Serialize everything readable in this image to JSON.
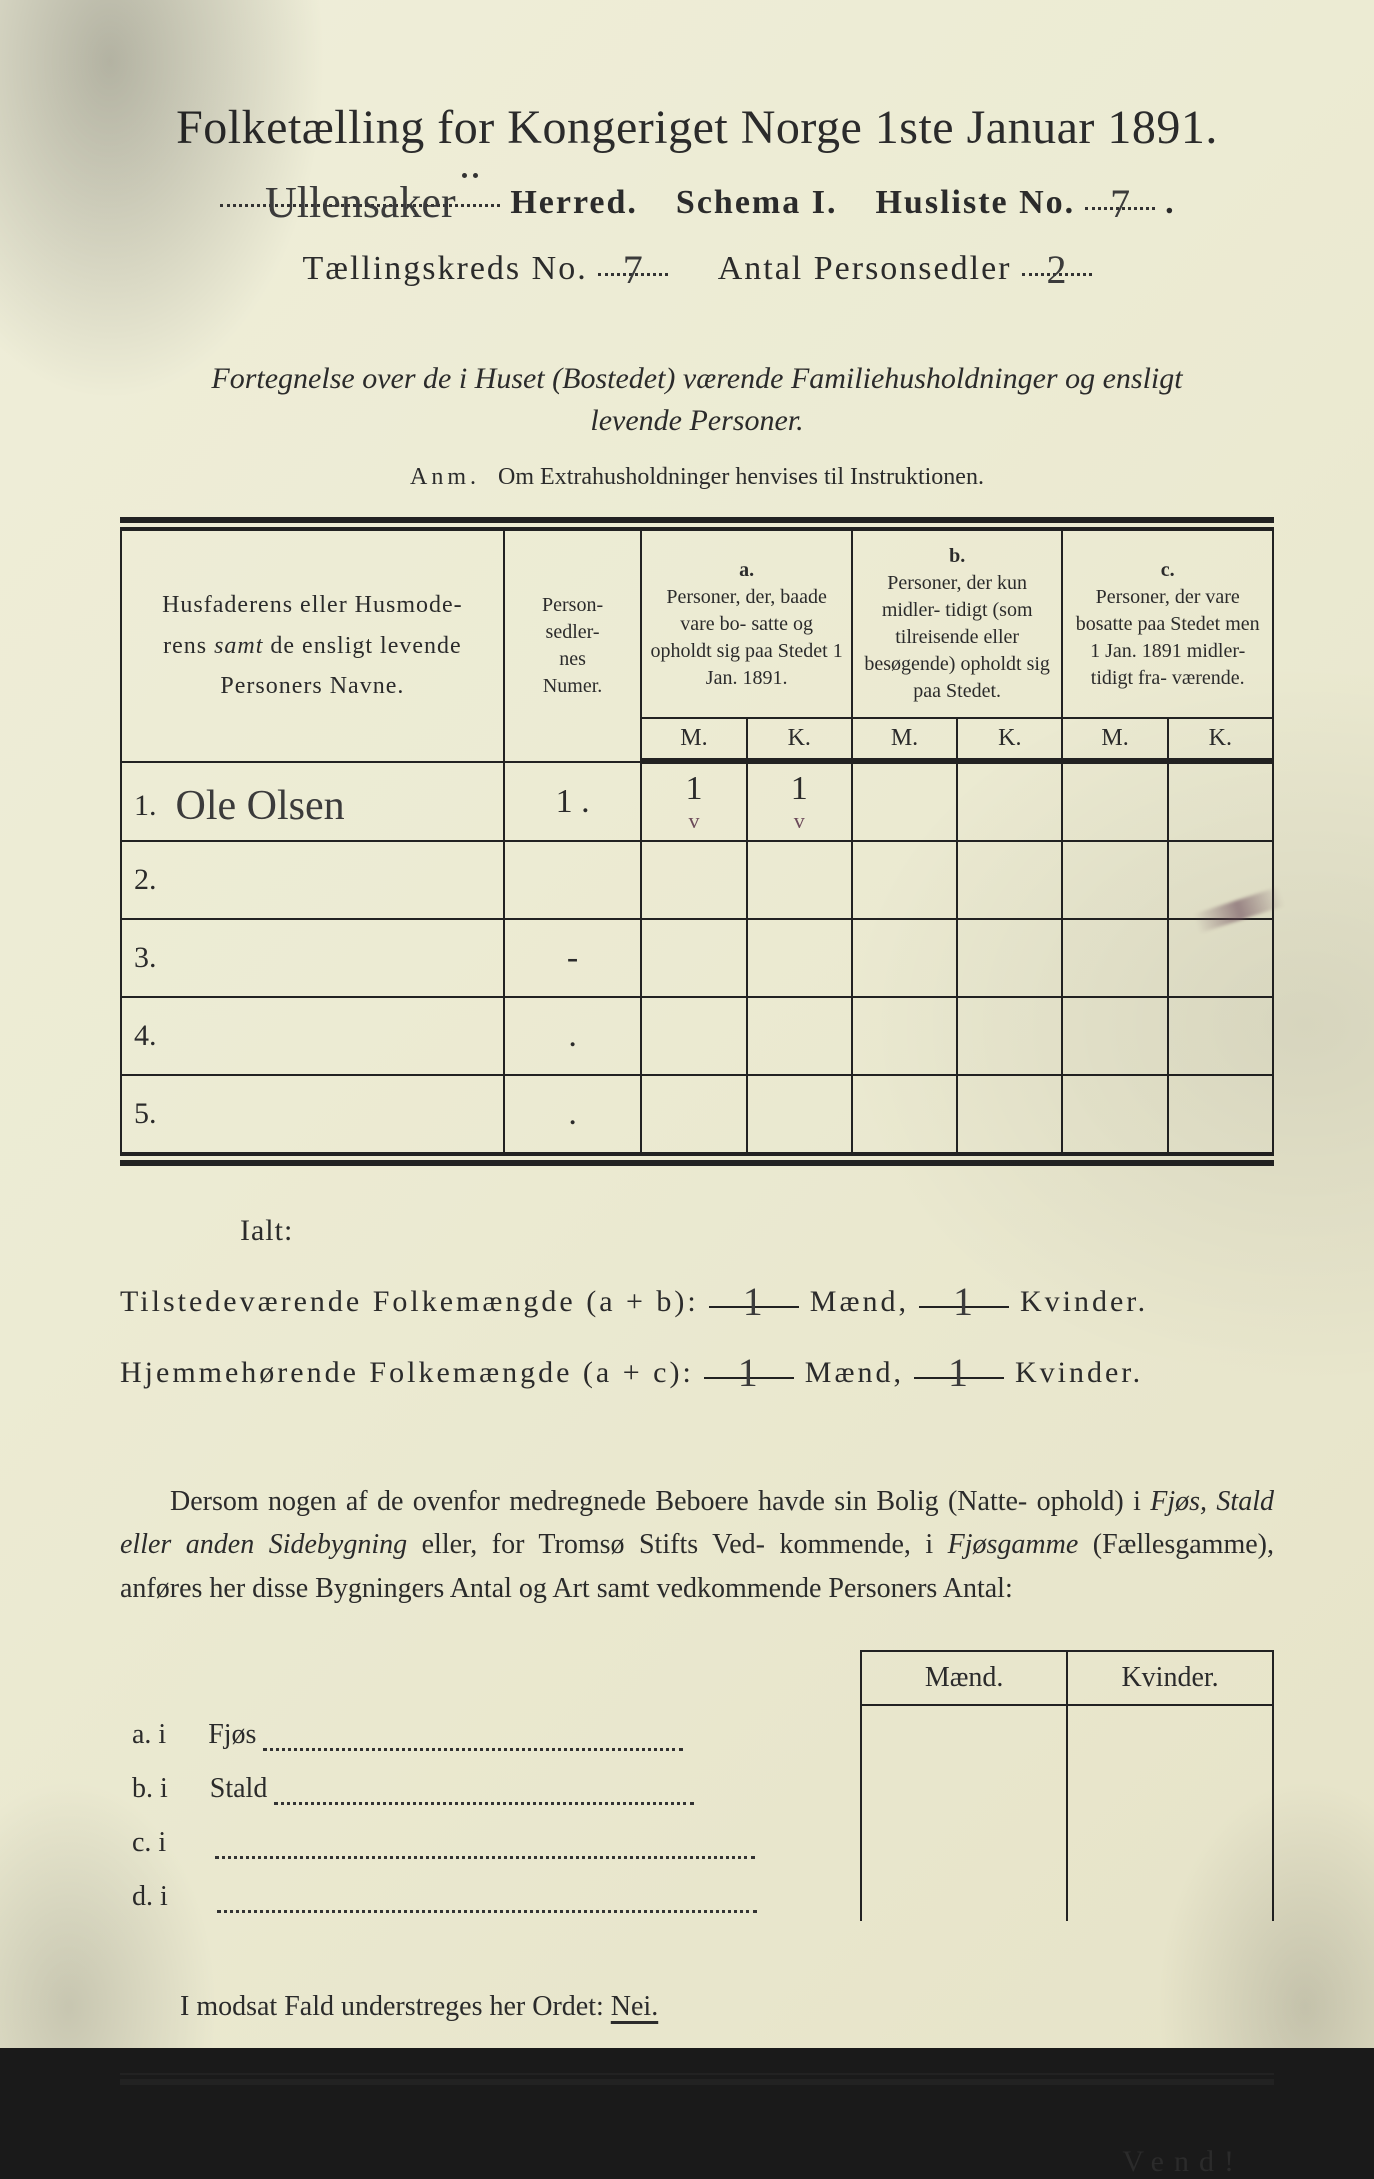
{
  "colors": {
    "ink": "#2b2b2b",
    "paper": "#ecebd3",
    "stain": "#6b4a5a"
  },
  "typography": {
    "body_pt": 28,
    "title_pt": 48,
    "family": "serif"
  },
  "header": {
    "title": "Folketælling for Kongeriget Norge 1ste Januar 1891.",
    "herred_hand": "Ullensaker",
    "herred_label": "Herred.",
    "schema_label": "Schema I.",
    "husliste_label": "Husliste No.",
    "husliste_no": "7",
    "kreds_label": "Tællingskreds No.",
    "kreds_no": "7",
    "antal_label": "Antal Personsedler",
    "antal_no": "2"
  },
  "intro": {
    "line1": "Fortegnelse over de i Huset (Bostedet) værende Familiehusholdninger og ensligt",
    "line2": "levende Personer.",
    "anm_label": "Anm.",
    "anm_text": "Om Extrahusholdninger henvises til Instruktionen."
  },
  "table": {
    "col_name": "Husfaderens eller Husmoderens samt de ensligt levende Personers Navne.",
    "col_numer": "Person-\nsedler-\nnes\nNumer.",
    "group_a": "a.",
    "group_a_text": "Personer, der, baade vare bo- satte og opholdt sig paa Stedet 1 Jan. 1891.",
    "group_b": "b.",
    "group_b_text": "Personer, der kun midler- tidigt (som tilreisende eller besøgende) opholdt sig paa Stedet.",
    "group_c": "c.",
    "group_c_text": "Personer, der vare bosatte paa Stedet men 1 Jan. 1891 midler- tidigt fra- værende.",
    "M": "M.",
    "K": "K.",
    "rows": [
      {
        "n": "1.",
        "name": "Ole Olsen",
        "numer": "1 .",
        "aM": "1",
        "aK": "1",
        "bM": "",
        "bK": "",
        "cM": "",
        "cK": "",
        "aMs": "v",
        "aKs": "v"
      },
      {
        "n": "2.",
        "name": "",
        "numer": "",
        "aM": "",
        "aK": "",
        "bM": "",
        "bK": "",
        "cM": "",
        "cK": ""
      },
      {
        "n": "3.",
        "name": "",
        "numer": "-",
        "aM": "",
        "aK": "",
        "bM": "",
        "bK": "",
        "cM": "",
        "cK": ""
      },
      {
        "n": "4.",
        "name": "",
        "numer": ".",
        "aM": "",
        "aK": "",
        "bM": "",
        "bK": "",
        "cM": "",
        "cK": ""
      },
      {
        "n": "5.",
        "name": "",
        "numer": ".",
        "aM": "",
        "aK": "",
        "bM": "",
        "bK": "",
        "cM": "",
        "cK": ""
      }
    ]
  },
  "totals": {
    "ialt": "Ialt:",
    "line1_label": "Tilstedeværende Folkemængde (a + b):",
    "line2_label": "Hjemmehørende Folkemængde (a + c):",
    "maend": "Mænd,",
    "kvinder": "Kvinder.",
    "v1m": "1",
    "v1k": "1",
    "v2m": "1",
    "v2k": "1"
  },
  "para": {
    "text": "Dersom nogen af de ovenfor medregnede Beboere havde sin Bolig (Natte- ophold) i Fjøs, Stald eller anden Sidebygning eller, for Tromsø Stifts Ved- kommende, i Fjøsgamme (Fællesgamme), anføres her disse Bygningers Antal og Art samt vedkommende Personers Antal:"
  },
  "buildings": {
    "head_m": "Mænd.",
    "head_k": "Kvinder.",
    "rows": [
      {
        "lab": "a.  i",
        "name": "Fjøs"
      },
      {
        "lab": "b.  i",
        "name": "Stald"
      },
      {
        "lab": "c.  i",
        "name": ""
      },
      {
        "lab": "d.  i",
        "name": ""
      }
    ]
  },
  "footer": {
    "nej_text": "I modsat Fald understreges her Ordet:",
    "nej": "Nei.",
    "vend": "Vend!"
  }
}
